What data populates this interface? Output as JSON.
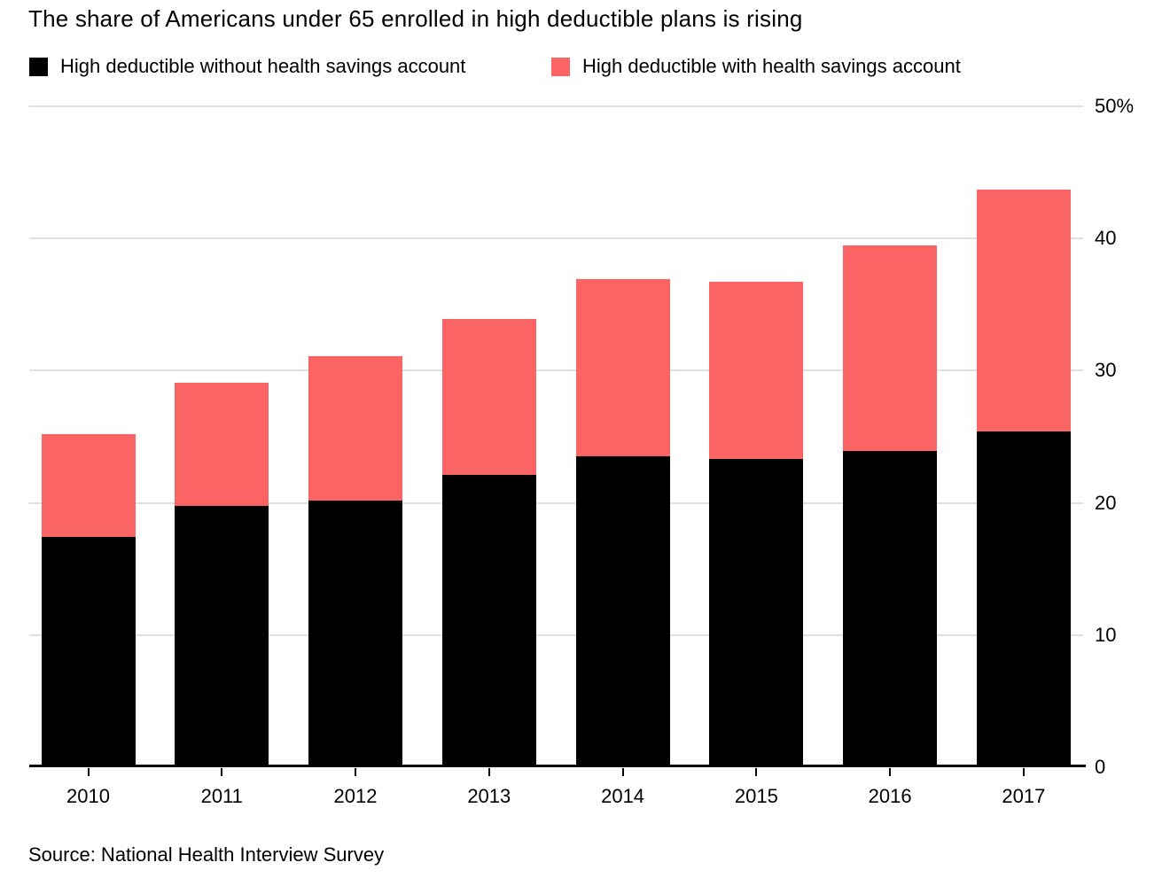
{
  "title": "The share of Americans under 65 enrolled in high deductible plans is rising",
  "legend": {
    "items": [
      {
        "label": "High deductible without health savings account",
        "color": "#000000"
      },
      {
        "label": "High deductible with health savings account",
        "color": "#FB6464"
      }
    ]
  },
  "source": "Source: National Health Interview Survey",
  "colors": {
    "background": "#FFFFFF",
    "grid": "#E0E0E0",
    "axis": "#000000",
    "text": "#000000"
  },
  "chart_data": {
    "type": "bar",
    "stacked": true,
    "title": "The share of Americans under 65 enrolled in high deductible plans is rising",
    "categories": [
      "2010",
      "2011",
      "2012",
      "2013",
      "2014",
      "2015",
      "2016",
      "2017"
    ],
    "series": [
      {
        "name": "High deductible without health savings account",
        "color": "#000000",
        "values": [
          17.4,
          19.8,
          20.2,
          22.1,
          23.5,
          23.3,
          23.9,
          25.4
        ]
      },
      {
        "name": "High deductible with health savings account",
        "color": "#FB6464",
        "values": [
          7.8,
          9.3,
          10.9,
          11.8,
          13.4,
          13.4,
          15.6,
          18.3
        ]
      }
    ],
    "totals": [
      25.2,
      29.1,
      31.1,
      33.9,
      36.9,
      36.7,
      39.5,
      43.7
    ],
    "xlabel": "",
    "ylabel": "",
    "ylim": [
      0,
      50
    ],
    "yticks": [
      {
        "value": 0,
        "label": "0"
      },
      {
        "value": 10,
        "label": "10"
      },
      {
        "value": 20,
        "label": "20"
      },
      {
        "value": 30,
        "label": "30"
      },
      {
        "value": 40,
        "label": "40"
      },
      {
        "value": 50,
        "label": "50%"
      }
    ],
    "grid": true,
    "legend_position": "top",
    "axis_side": "right"
  }
}
